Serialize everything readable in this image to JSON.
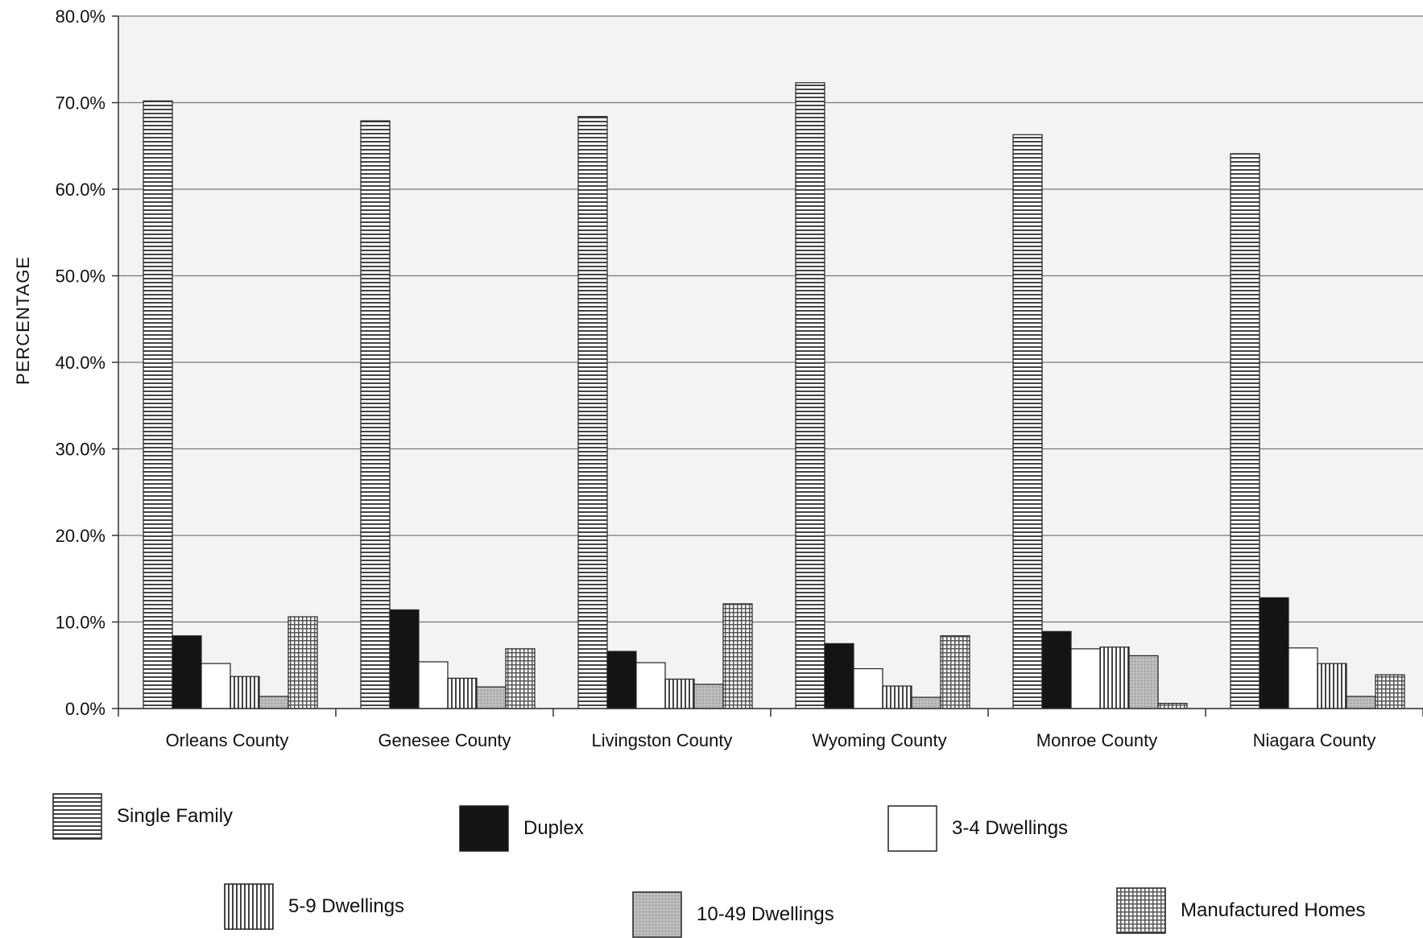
{
  "chart_data": {
    "type": "bar",
    "ylabel": "PERCENTAGE",
    "xlabel": "",
    "ylim": [
      0,
      80
    ],
    "yticks": [
      "0.0%",
      "10.0%",
      "20.0%",
      "30.0%",
      "40.0%",
      "50.0%",
      "60.0%",
      "70.0%",
      "80.0%"
    ],
    "grid": true,
    "legend_position": "bottom",
    "categories": [
      "Orleans County",
      "Genesee County",
      "Livingston County",
      "Wyoming County",
      "Monroe County",
      "Niagara County"
    ],
    "series": [
      {
        "name": "Single Family",
        "pattern": "hstripe",
        "values": [
          70.2,
          67.9,
          68.4,
          72.3,
          66.3,
          64.1
        ]
      },
      {
        "name": "Duplex",
        "pattern": "solid-black",
        "values": [
          8.4,
          11.4,
          6.6,
          7.5,
          8.9,
          12.8
        ]
      },
      {
        "name": "3-4 Dwellings",
        "pattern": "white",
        "values": [
          5.2,
          5.4,
          5.3,
          4.6,
          6.9,
          7.0
        ]
      },
      {
        "name": "5-9 Dwellings",
        "pattern": "vstripe",
        "values": [
          3.7,
          3.5,
          3.4,
          2.6,
          7.1,
          5.2
        ]
      },
      {
        "name": "10-49 Dwellings",
        "pattern": "gray",
        "values": [
          1.4,
          2.5,
          2.8,
          1.3,
          6.1,
          1.4
        ]
      },
      {
        "name": "Manufactured Homes",
        "pattern": "grid",
        "values": [
          10.6,
          6.9,
          12.1,
          8.4,
          0.6,
          3.9
        ]
      }
    ]
  }
}
